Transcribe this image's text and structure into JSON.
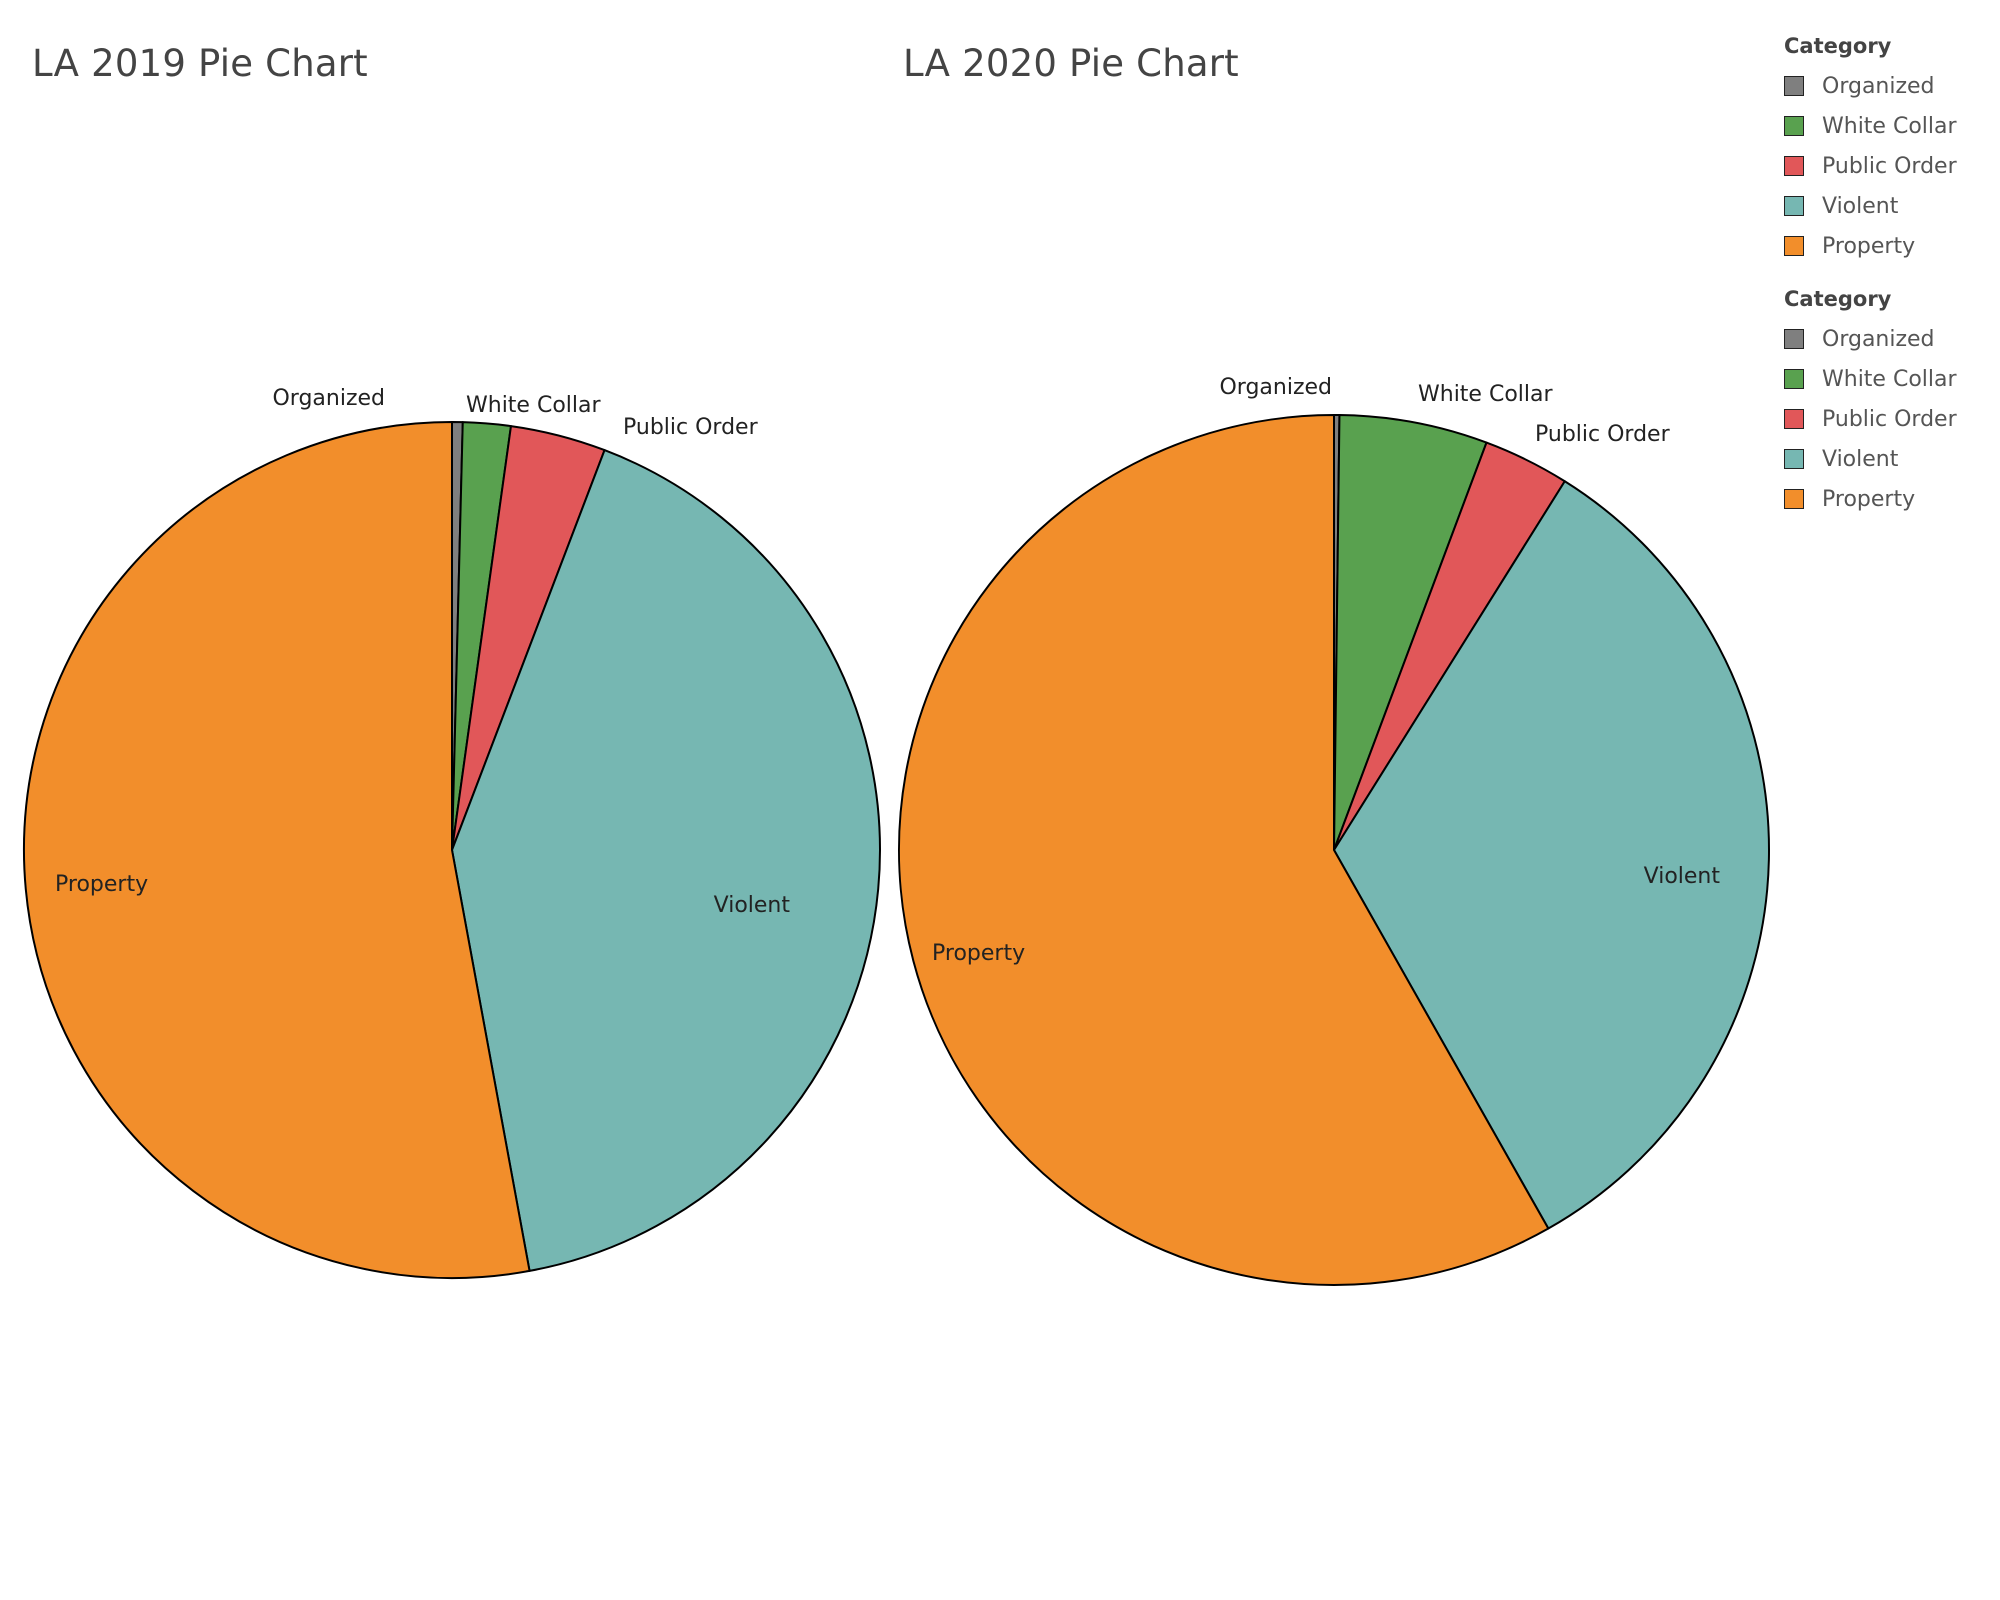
{
  "colors": {
    "Organized": "#7f7f7f",
    "White Collar": "#59a14f",
    "Public Order": "#e15759",
    "Violent": "#76b7b2",
    "Property": "#f28e2b"
  },
  "legends": [
    {
      "title": "Category",
      "items": [
        "Organized",
        "White Collar",
        "Public Order",
        "Violent",
        "Property"
      ]
    },
    {
      "title": "Category",
      "items": [
        "Organized",
        "White Collar",
        "Public Order",
        "Violent",
        "Property"
      ]
    }
  ],
  "chart_data": [
    {
      "type": "pie",
      "title": "LA 2019 Pie Chart",
      "start_angle_deg": 0,
      "direction": "clockwise",
      "slices": [
        {
          "label": "Organized",
          "share": 0.4
        },
        {
          "label": "White Collar",
          "share": 1.8
        },
        {
          "label": "Public Order",
          "share": 3.6
        },
        {
          "label": "Violent",
          "share": 41.3
        },
        {
          "label": "Property",
          "share": 52.9
        }
      ],
      "legend_placement": "right"
    },
    {
      "type": "pie",
      "title": "LA 2020 Pie Chart",
      "start_angle_deg": 0,
      "direction": "clockwise",
      "slices": [
        {
          "label": "Organized",
          "share": 0.2
        },
        {
          "label": "White Collar",
          "share": 5.5
        },
        {
          "label": "Public Order",
          "share": 3.2
        },
        {
          "label": "Violent",
          "share": 32.9
        },
        {
          "label": "Property",
          "share": 58.2
        }
      ],
      "legend_placement": "right"
    }
  ]
}
